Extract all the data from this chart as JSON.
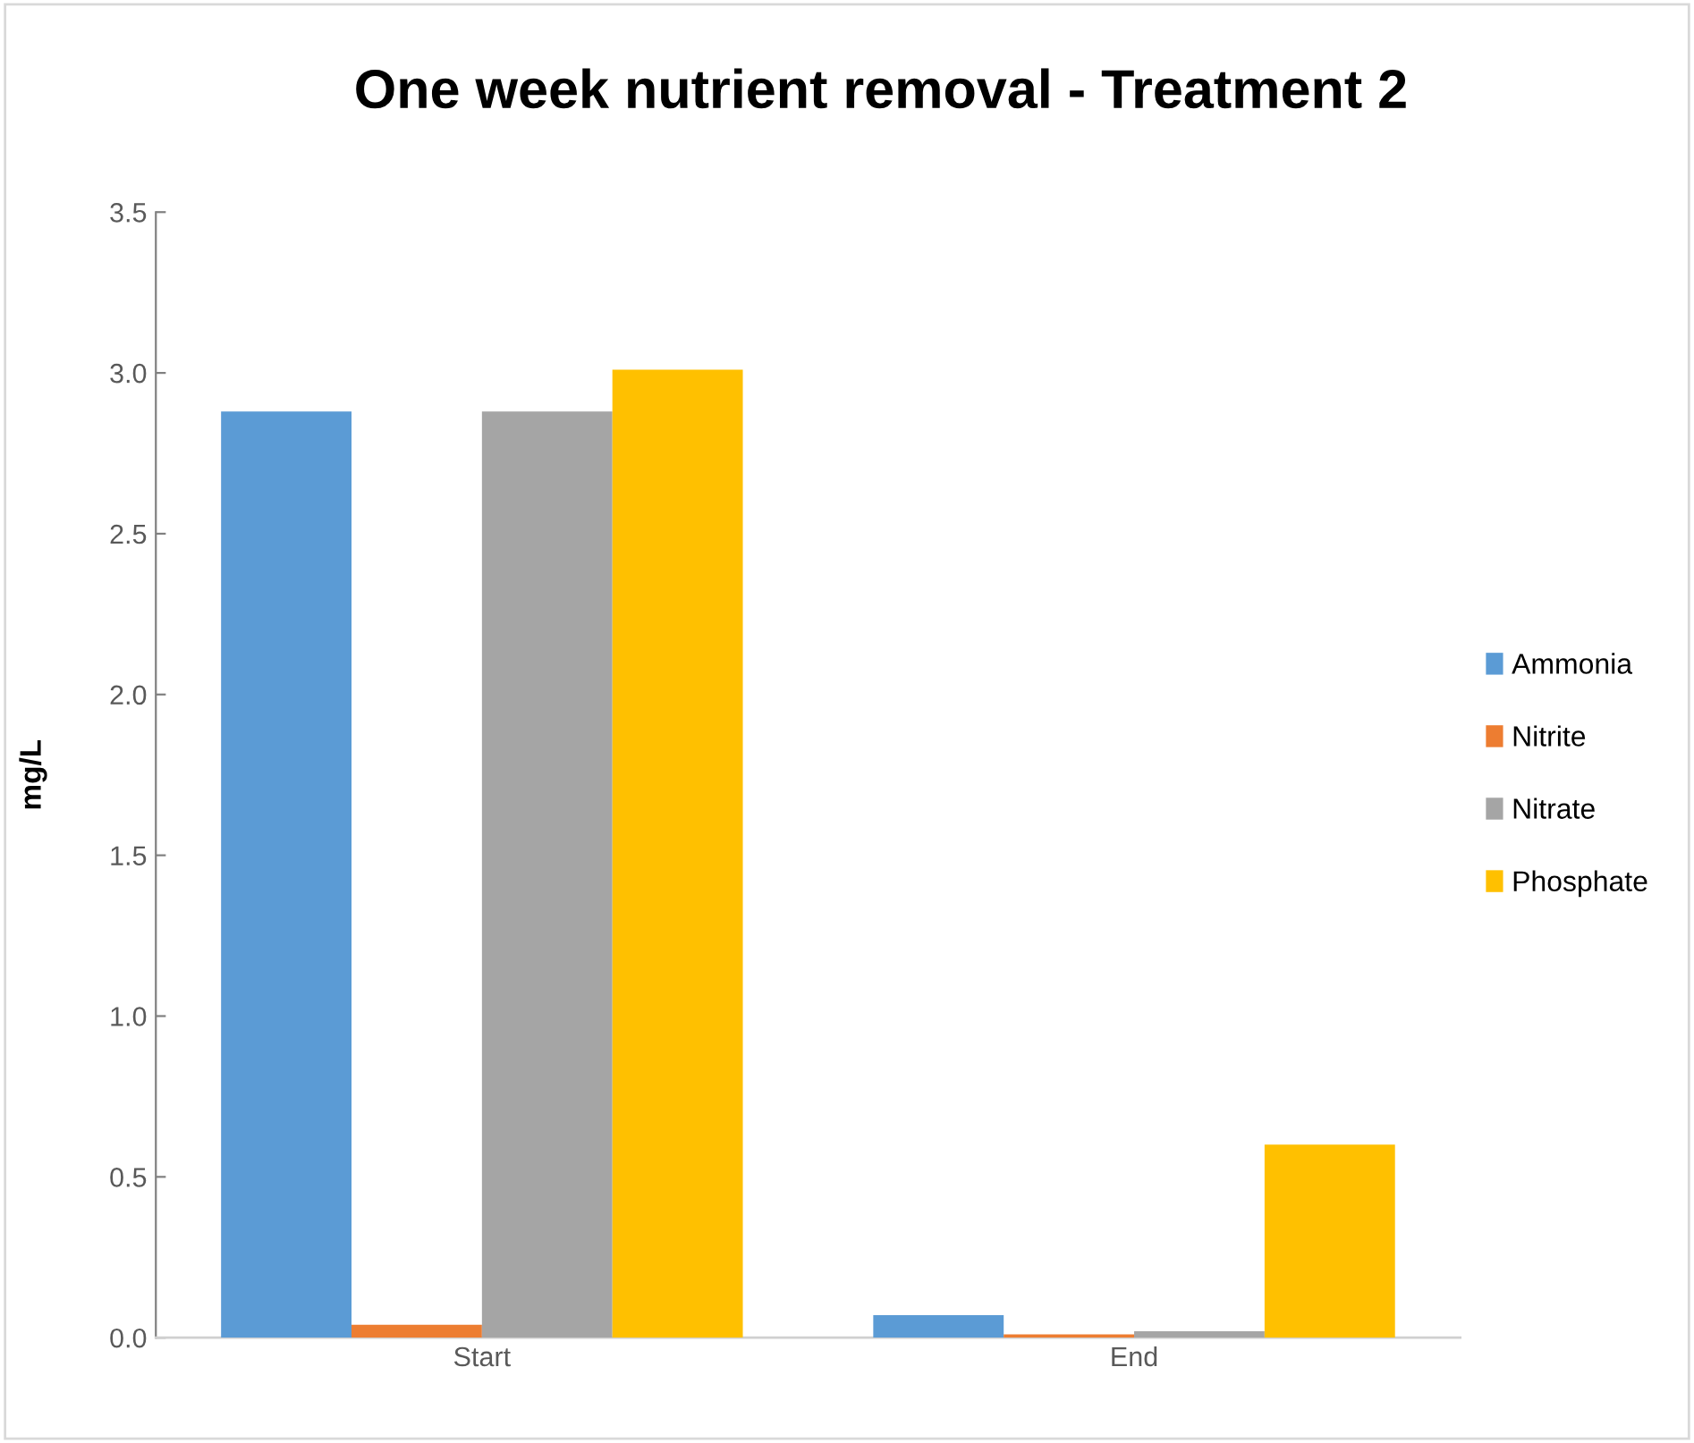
{
  "chart_data": {
    "type": "bar",
    "title": "One week nutrient removal - Treatment 2",
    "ylabel": "mg/L",
    "categories": [
      "Start",
      "End"
    ],
    "series": [
      {
        "name": "Ammonia",
        "color": "#5b9bd5",
        "values": [
          2.88,
          0.07
        ]
      },
      {
        "name": "Nitrite",
        "color": "#ed7d31",
        "values": [
          0.04,
          0.01
        ]
      },
      {
        "name": "Nitrate",
        "color": "#a5a5a5",
        "values": [
          2.88,
          0.02
        ]
      },
      {
        "name": "Phosphate",
        "color": "#ffc000",
        "values": [
          3.01,
          0.6
        ]
      }
    ],
    "ylim": [
      0,
      3.5
    ],
    "yticks": [
      {
        "value": 0,
        "label": "0.0"
      },
      {
        "value": 0.5,
        "label": "0.5"
      },
      {
        "value": 1,
        "label": "1.0"
      },
      {
        "value": 1.5,
        "label": "1.5"
      },
      {
        "value": 2,
        "label": "2.0"
      },
      {
        "value": 2.5,
        "label": "2.5"
      },
      {
        "value": 3,
        "label": "3.0"
      },
      {
        "value": 3.5,
        "label": "3.5"
      }
    ],
    "grid": false,
    "legend": "right"
  }
}
